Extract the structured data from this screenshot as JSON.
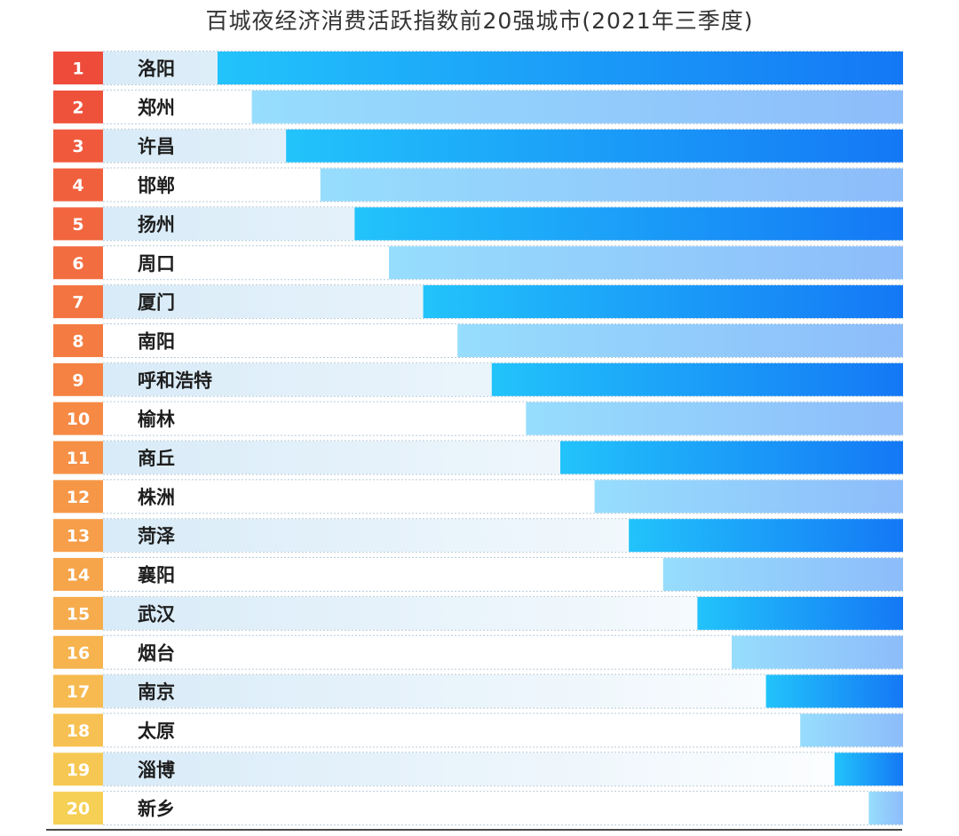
{
  "chart_data": {
    "type": "bar",
    "orientation": "horizontal",
    "title": "百城夜经济消费活跃指数前20强城市(2021年三季度)",
    "ranks": [
      "1",
      "2",
      "3",
      "4",
      "5",
      "6",
      "7",
      "8",
      "9",
      "10",
      "11",
      "12",
      "13",
      "14",
      "15",
      "16",
      "17",
      "18",
      "19",
      "20"
    ],
    "categories": [
      "洛阳",
      "郑州",
      "许昌",
      "邯郸",
      "扬州",
      "周口",
      "厦门",
      "南阳",
      "呼和浩特",
      "榆林",
      "商丘",
      "株洲",
      "菏泽",
      "襄阳",
      "武汉",
      "烟台",
      "南京",
      "太原",
      "淄博",
      "新乡"
    ],
    "values": [
      20,
      19,
      18,
      17,
      16,
      15,
      14,
      13,
      12,
      11,
      10,
      9,
      8,
      7,
      6,
      5,
      4,
      3,
      2,
      1
    ],
    "xlim": [
      0,
      20
    ],
    "grid": false,
    "legend": "none",
    "colors": {
      "bar_dark_start": "#22c3fb",
      "bar_dark_end": "#1478f5",
      "bar_light_start": "#97ddfd",
      "bar_light_end": "#8dbcfa",
      "band": "#d8ebf8",
      "rank_top": "#ee4b3a",
      "rank_mid": "#f68c45",
      "rank_bottom": "#f6cf55"
    }
  }
}
